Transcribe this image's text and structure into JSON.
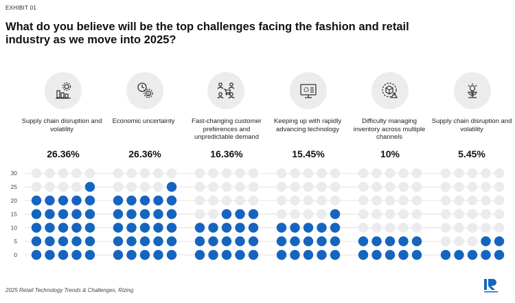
{
  "exhibit_label": "EXHIBIT 01",
  "title": "What do you believe will be the top challenges facing the fashion and retail industry as we move into 2025?",
  "source": "2025 Retail Technology Trends & Challenges, Rizing",
  "colors": {
    "filled": "#1565c0",
    "empty": "#ebebeb",
    "icon_bg": "#ececec",
    "icon_stroke": "#333333",
    "gridline": "#d6d6d6"
  },
  "categories": [
    {
      "label": "Supply chain disruption and volatility",
      "percent_label": "26.36%",
      "icon": "chart-gear-icon"
    },
    {
      "label": "Economic uncertainty",
      "percent_label": "26.36%",
      "icon": "clock-dollar-icon"
    },
    {
      "label": "Fast-changing customer preferences and unpredictable demand",
      "percent_label": "16.36%",
      "icon": "customers-cart-icon"
    },
    {
      "label": "Keeping up with rapidly advancing technology",
      "percent_label": "15.45%",
      "icon": "monitor-gear-icon"
    },
    {
      "label": "Difficulty managing inventory across multiple channels",
      "percent_label": "10%",
      "icon": "box-warning-icon"
    },
    {
      "label": "Supply chain disruption and volatility",
      "percent_label": "5.45%",
      "icon": "plant-bulb-icon"
    }
  ],
  "chart_data": {
    "type": "bar",
    "subtype": "dot-matrix",
    "categories": [
      "Supply chain disruption and volatility",
      "Economic uncertainty",
      "Fast-changing customer preferences and unpredictable demand",
      "Keeping up with rapidly advancing technology",
      "Difficulty managing inventory across multiple channels",
      "Supply chain disruption and volatility"
    ],
    "values": [
      26.36,
      26.36,
      16.36,
      15.45,
      10,
      5.45
    ],
    "filled_dots": [
      26,
      26,
      18,
      16,
      10,
      7
    ],
    "dots_per_row": 5,
    "rows": 7,
    "y_ticks": [
      0,
      5,
      10,
      15,
      20,
      25,
      30
    ],
    "ylim": [
      0,
      30
    ],
    "grid": true
  }
}
